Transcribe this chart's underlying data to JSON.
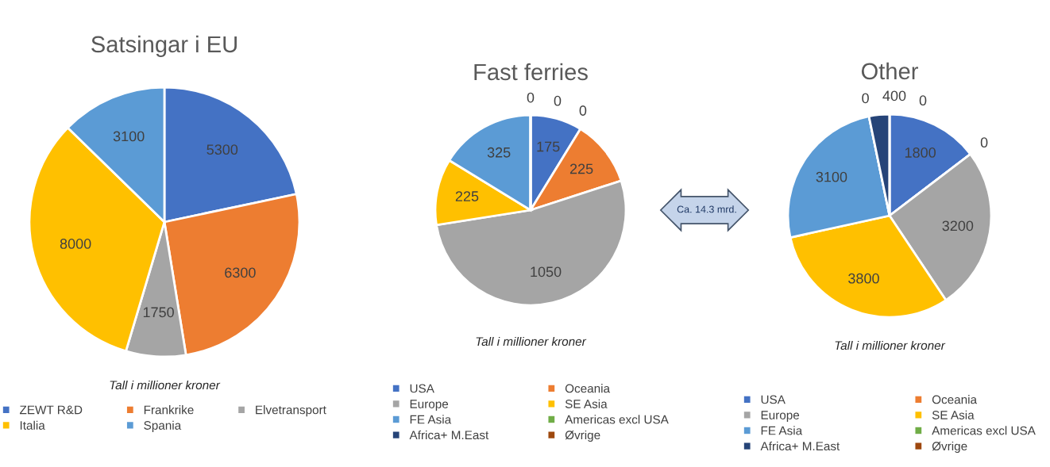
{
  "chart_data": [
    {
      "type": "pie",
      "title": "Satsingar i EU",
      "categories": [
        "ZEWT R&D",
        "Frankrike",
        "Elvetransport",
        "Italia",
        "Spania"
      ],
      "values": [
        5300,
        6300,
        1750,
        8000,
        3100
      ],
      "colors": [
        "#4472c4",
        "#ed7d31",
        "#a5a5a5",
        "#ffc000",
        "#5b9bd5"
      ],
      "data_labels": true,
      "legend": "bottom",
      "annotations": [
        "Tall i millioner kroner"
      ]
    },
    {
      "type": "pie",
      "title": "Fast ferries",
      "categories": [
        "USA",
        "Oceania",
        "Europe",
        "SE Asia",
        "FE Asia",
        "Americas excl USA",
        "Africa+ M.East",
        "Øvrige"
      ],
      "values": [
        175,
        225,
        1050,
        225,
        325,
        0,
        0,
        0
      ],
      "value_labels": [
        "175",
        "225",
        "1050",
        "225",
        "325",
        "0",
        "0",
        "0"
      ],
      "colors": [
        "#4472c4",
        "#ed7d31",
        "#a5a5a5",
        "#ffc000",
        "#5b9bd5",
        "#70ad47",
        "#264478",
        "#9e480e"
      ],
      "data_labels": true,
      "legend": "bottom",
      "annotations": [
        "Tall i millioner kroner",
        "Ca. 14.3 mrd."
      ]
    },
    {
      "type": "pie",
      "title": "Other",
      "categories": [
        "USA",
        "Oceania",
        "Europe",
        "SE Asia",
        "FE Asia",
        "Americas excl USA",
        "Africa+ M.East",
        "Øvrige"
      ],
      "values": [
        1800,
        0,
        3200,
        3800,
        3100,
        0,
        400,
        0
      ],
      "value_labels": [
        "1800",
        "0",
        "3200",
        "3800",
        "3100",
        "0",
        "400",
        "0"
      ],
      "colors": [
        "#4472c4",
        "#ed7d31",
        "#a5a5a5",
        "#ffc000",
        "#5b9bd5",
        "#70ad47",
        "#264478",
        "#9e480e"
      ],
      "data_labels": true,
      "legend": "bottom",
      "annotations": [
        "Tall i millioner kroner"
      ]
    }
  ]
}
